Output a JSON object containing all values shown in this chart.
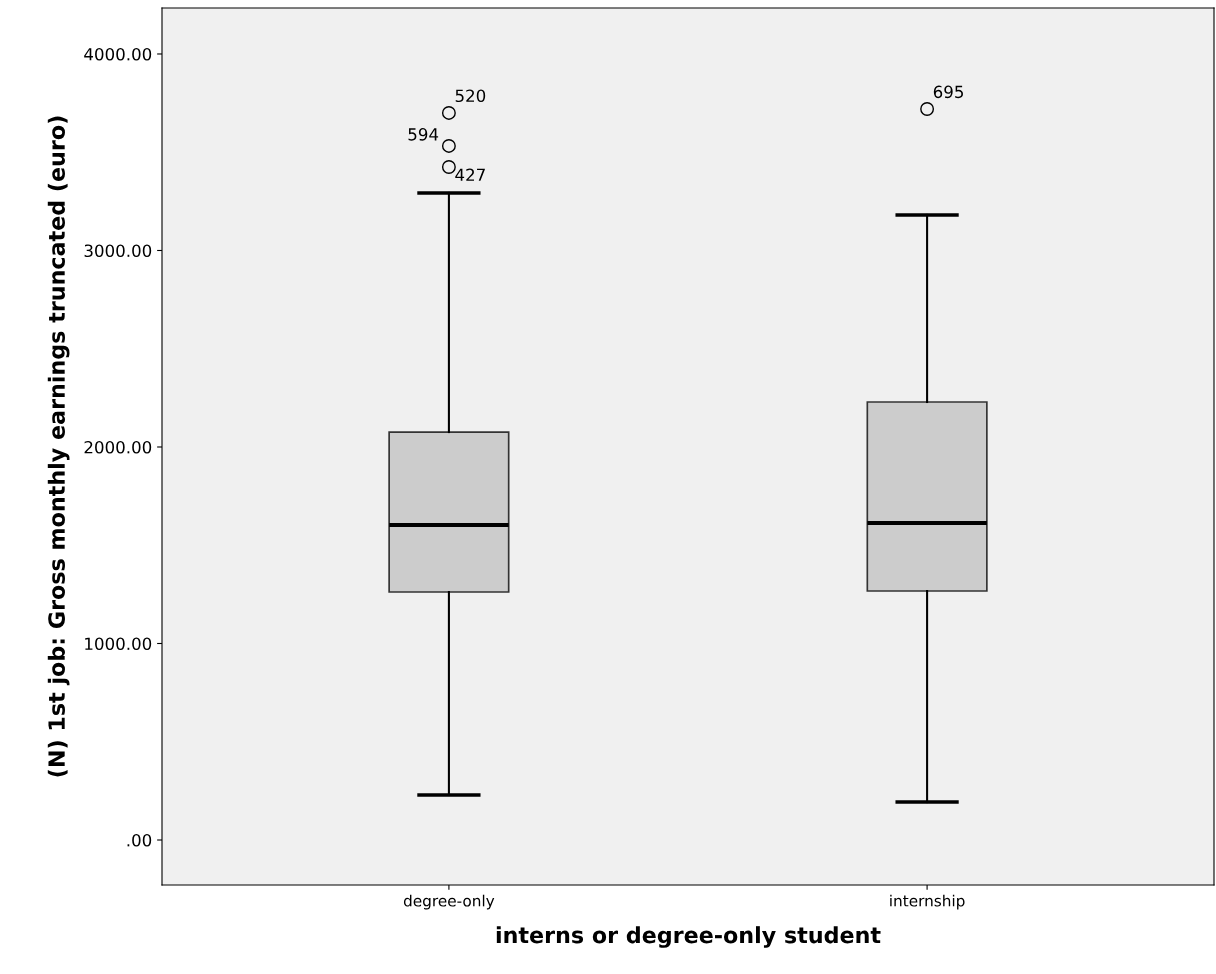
{
  "chart_data": {
    "type": "box",
    "xlabel": "interns or degree-only student",
    "ylabel": "(N) 1st job: Gross monthly earnings truncated (euro)",
    "categories": [
      "degree-only",
      "internship"
    ],
    "boxes": [
      {
        "low": 229,
        "q1": 1262,
        "median": 1603,
        "q3": 2076,
        "high": 3293,
        "outliers": [
          3700,
          3532,
          3425
        ]
      },
      {
        "low": 193,
        "q1": 1267,
        "median": 1613,
        "q3": 2229,
        "high": 3181,
        "outliers": [
          3720
        ]
      }
    ],
    "color": "#cccccc",
    "ylim": [
      -229,
      4234
    ],
    "yticks": [
      {
        "value": 0,
        "label": ".00"
      },
      {
        "value": 1000,
        "label": "1000.00"
      },
      {
        "value": 2000,
        "label": "2000.00"
      },
      {
        "value": 3000,
        "label": "3000.00"
      },
      {
        "value": 4000,
        "label": "4000.00"
      }
    ],
    "annotations": [
      "520",
      "594",
      "427",
      "695"
    ],
    "grid": false
  }
}
